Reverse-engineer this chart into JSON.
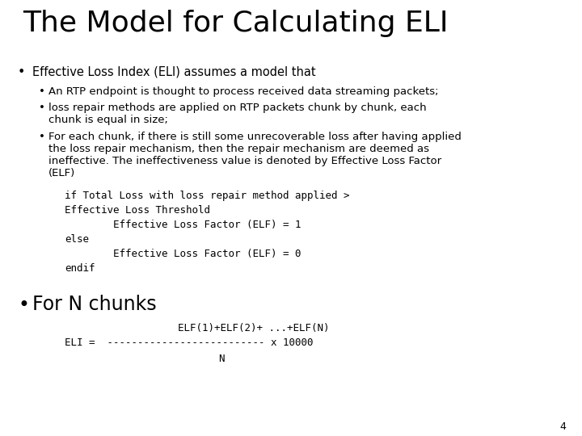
{
  "title": "The Model for Calculating ELI",
  "background_color": "#ffffff",
  "text_color": "#000000",
  "title_fontsize": 26,
  "body_fontsize": 10.5,
  "sub_fontsize": 9.5,
  "code_fontsize": 9,
  "bullet2_fontsize": 15,
  "page_number": "4",
  "bullet1": "Effective Loss Index (ELI) assumes a model that",
  "sub_bullet1": "An RTP endpoint is thought to process received data streaming packets;",
  "sub_bullet2_line1": "loss repair methods are applied on RTP packets chunk by chunk, each",
  "sub_bullet2_line2": "chunk is equal in size;",
  "sub_bullet3_line1": "For each chunk, if there is still some unrecoverable loss after having applied",
  "sub_bullet3_line2": "the loss repair mechanism, then the repair mechanism are deemed as",
  "sub_bullet3_line3": "ineffective. The ineffectiveness value is denoted by Effective Loss Factor",
  "sub_bullet3_line4": "(ELF)",
  "code_lines": [
    "if Total Loss with loss repair method applied >",
    "Effective Loss Threshold",
    "        Effective Loss Factor (ELF) = 1",
    "else",
    "        Effective Loss Factor (ELF) = 0",
    "endif"
  ],
  "bullet2": "For N chunks",
  "formula_numerator": "ELF(1)+ELF(2)+ ...+ELF(N)",
  "formula_main": "ELI =  -------------------------- x 10000",
  "formula_denominator": "N"
}
